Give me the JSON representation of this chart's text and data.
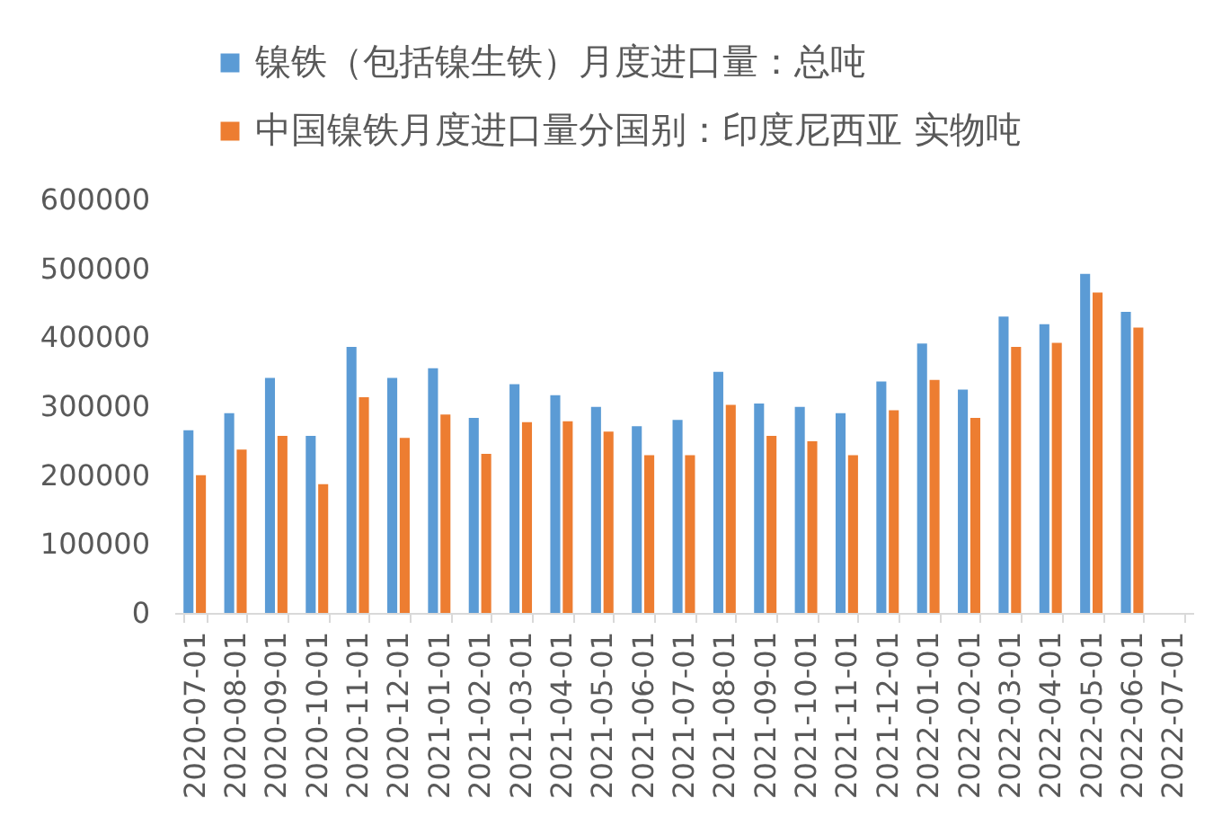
{
  "chart_data": {
    "type": "bar",
    "categories": [
      "2020-07-01",
      "2020-08-01",
      "2020-09-01",
      "2020-10-01",
      "2020-11-01",
      "2020-12-01",
      "2021-01-01",
      "2021-02-01",
      "2021-03-01",
      "2021-04-01",
      "2021-05-01",
      "2021-06-01",
      "2021-07-01",
      "2021-08-01",
      "2021-09-01",
      "2021-10-01",
      "2021-11-01",
      "2021-12-01",
      "2022-01-01",
      "2022-02-01",
      "2022-03-01",
      "2022-04-01",
      "2022-05-01",
      "2022-06-01",
      "2022-07-01"
    ],
    "series": [
      {
        "name": "镍铁（包括镍生铁）月度进口量：总吨",
        "color": "#5b9bd5",
        "values": [
          265000,
          290000,
          341000,
          257000,
          386000,
          341000,
          355000,
          283000,
          332000,
          316000,
          299000,
          271000,
          280000,
          350000,
          304000,
          299000,
          290000,
          336000,
          391000,
          324000,
          430000,
          419000,
          492000,
          437000,
          null
        ]
      },
      {
        "name": "中国镍铁月度进口量分国别：印度尼西亚 实物吨",
        "color": "#ed7d31",
        "values": [
          200000,
          237000,
          257000,
          187000,
          313000,
          254000,
          288000,
          231000,
          277000,
          278000,
          263000,
          229000,
          229000,
          302000,
          257000,
          249000,
          229000,
          294000,
          338000,
          283000,
          386000,
          392000,
          465000,
          414000,
          null
        ]
      }
    ],
    "ylim": [
      0,
      600000
    ],
    "yticks": [
      0,
      100000,
      200000,
      300000,
      400000,
      500000,
      600000
    ],
    "grid": false,
    "legend": "top"
  }
}
